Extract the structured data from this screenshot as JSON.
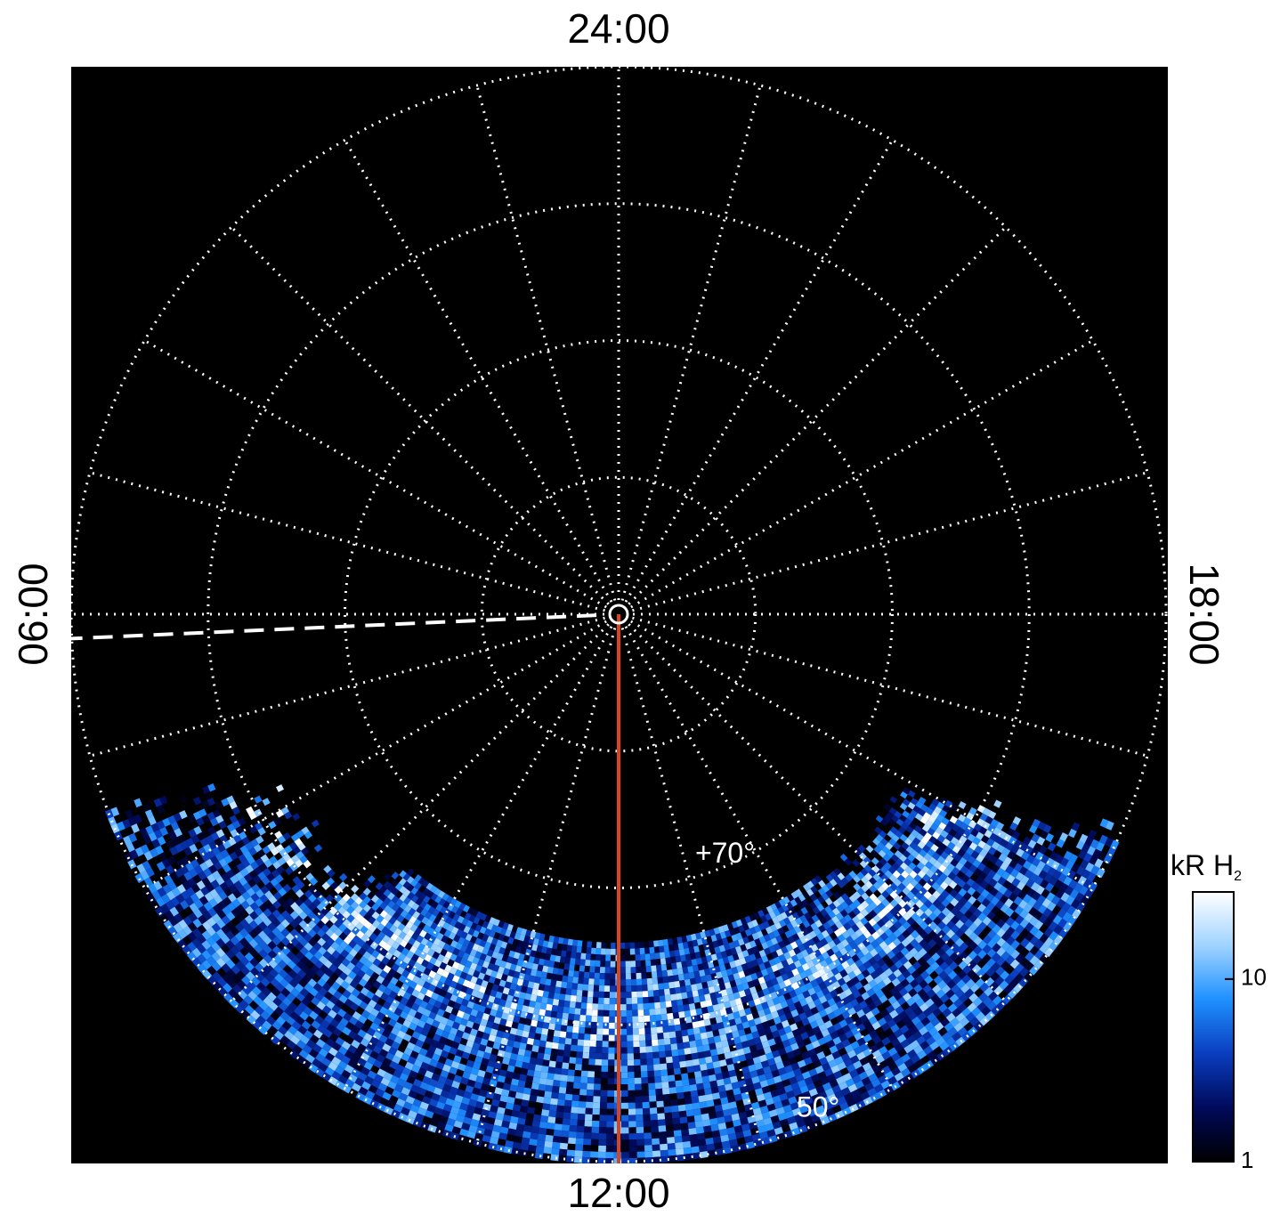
{
  "chart_data": {
    "type": "polar-image",
    "hour_labels": [
      {
        "value": 24,
        "label": "24:00"
      },
      {
        "value": 6,
        "label": "06:00"
      },
      {
        "value": 18,
        "label": "18:00"
      },
      {
        "value": 12,
        "label": "12:00"
      }
    ],
    "rlim": [
      90,
      50
    ],
    "rticks": [
      80,
      70,
      60,
      50
    ],
    "meridian_step_hours": 1,
    "ring_labels": [
      {
        "value": 70,
        "label": "+70°"
      },
      {
        "value": 50,
        "label": "50°"
      }
    ],
    "grid": true,
    "lines": [
      {
        "hour": 12,
        "color": "#d9441c",
        "style": "solid"
      },
      {
        "hour": 6.17,
        "color": "#ffffff",
        "style": "dashed"
      }
    ],
    "colorbar": {
      "label": "kR H",
      "label_sub": "2",
      "clim": [
        1,
        30
      ],
      "ticks": [
        1,
        10
      ],
      "log": true,
      "colors": [
        "#000000",
        "#000a5a",
        "#0a3dbf",
        "#1e90ff",
        "#9fd3ff",
        "#ffffff"
      ]
    }
  }
}
